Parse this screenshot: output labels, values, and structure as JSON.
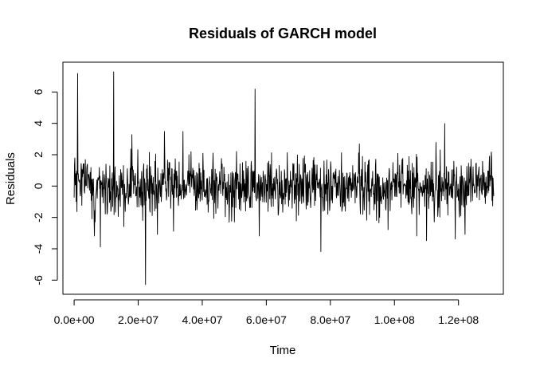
{
  "chart_data": {
    "type": "line",
    "title": "Residuals of GARCH model",
    "xlabel": "Time",
    "ylabel": "Residuals",
    "xlim": [
      -3500000,
      134000000
    ],
    "ylim": [
      -6.9,
      7.9
    ],
    "x_ticks": [
      0,
      20000000,
      40000000,
      60000000,
      80000000,
      100000000,
      120000000
    ],
    "x_tick_labels": [
      "0.0e+00",
      "2.0e+07",
      "4.0e+07",
      "6.0e+07",
      "8.0e+07",
      "1.0e+08",
      "1.2e+08"
    ],
    "y_ticks": [
      -6,
      -4,
      -2,
      0,
      2,
      4,
      6
    ],
    "y_tick_labels": [
      "-6",
      "-4",
      "-2",
      "0",
      "2",
      "4",
      "6"
    ],
    "grid": false,
    "series": [
      {
        "x_start": 0,
        "x_end": 131000000,
        "color": "#000000",
        "n_points": 1200,
        "noise_sd": 0.85,
        "seed": 20240517,
        "spikes": [
          {
            "x": 1100000,
            "y": 7.2
          },
          {
            "x": 12300000,
            "y": 7.3
          },
          {
            "x": 56500000,
            "y": 6.2
          },
          {
            "x": 115700000,
            "y": 4.0
          },
          {
            "x": 28200000,
            "y": 3.5
          },
          {
            "x": 34000000,
            "y": 3.5
          },
          {
            "x": 18000000,
            "y": 3.3
          },
          {
            "x": 89000000,
            "y": 2.7
          },
          {
            "x": 113000000,
            "y": 2.8
          },
          {
            "x": 22300000,
            "y": -6.3
          },
          {
            "x": 8200000,
            "y": -3.9
          },
          {
            "x": 77000000,
            "y": -4.2
          },
          {
            "x": 6300000,
            "y": -3.2
          },
          {
            "x": 26000000,
            "y": -3.1
          },
          {
            "x": 57800000,
            "y": -3.2
          },
          {
            "x": 107000000,
            "y": -3.2
          },
          {
            "x": 110000000,
            "y": -3.5
          },
          {
            "x": 119000000,
            "y": -3.4
          },
          {
            "x": 122000000,
            "y": -3.1
          },
          {
            "x": 31000000,
            "y": -2.9
          },
          {
            "x": 15500000,
            "y": -2.6
          },
          {
            "x": 98000000,
            "y": -2.8
          }
        ]
      }
    ]
  }
}
